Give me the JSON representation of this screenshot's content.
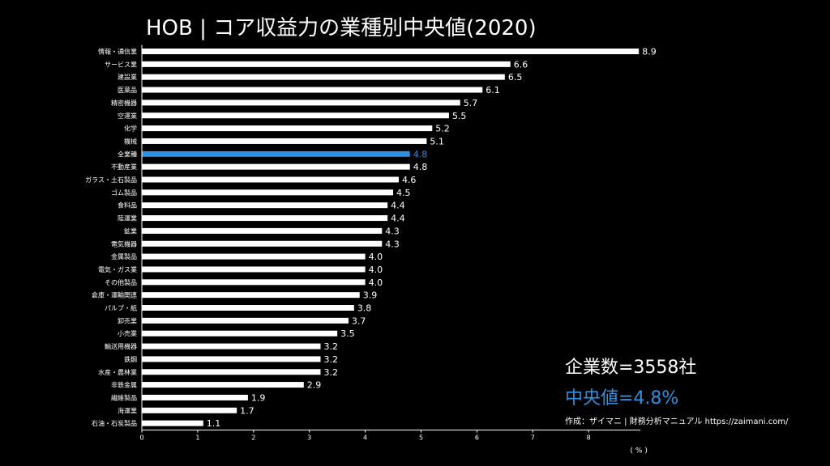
{
  "chart_data": {
    "type": "bar",
    "orientation": "horizontal",
    "title": "HOB | コア収益力の業種別中央値(2020)",
    "xlabel": "( % )",
    "xlim": [
      0,
      9
    ],
    "xticks": [
      0,
      1,
      2,
      3,
      4,
      5,
      6,
      7,
      8
    ],
    "highlight_category": "全業種",
    "categories": [
      "情報・通信業",
      "サービス業",
      "建設業",
      "医薬品",
      "精密機器",
      "空運業",
      "化学",
      "機械",
      "全業種",
      "不動産業",
      "ガラス・土石製品",
      "ゴム製品",
      "食料品",
      "陸運業",
      "鉱業",
      "電気機器",
      "金属製品",
      "電気・ガス業",
      "その他製品",
      "倉庫・運輸関連",
      "パルプ・紙",
      "卸売業",
      "小売業",
      "輸送用機器",
      "鉄鋼",
      "水産・農林業",
      "非鉄金属",
      "繊維製品",
      "海運業",
      "石油・石炭製品"
    ],
    "values": [
      8.9,
      6.6,
      6.5,
      6.1,
      5.7,
      5.5,
      5.2,
      5.1,
      4.8,
      4.8,
      4.6,
      4.5,
      4.4,
      4.4,
      4.3,
      4.3,
      4.0,
      4.0,
      4.0,
      3.9,
      3.8,
      3.7,
      3.5,
      3.2,
      3.2,
      3.2,
      2.9,
      1.9,
      1.7,
      1.1
    ],
    "value_labels": [
      "8.9",
      "6.6",
      "6.5",
      "6.1",
      "5.7",
      "5.5",
      "5.2",
      "5.1",
      "4.8",
      "4.8",
      "4.6",
      "4.5",
      "4.4",
      "4.4",
      "4.3",
      "4.3",
      "4.0",
      "4.0",
      "4.0",
      "3.9",
      "3.8",
      "3.7",
      "3.5",
      "3.2",
      "3.2",
      "3.2",
      "2.9",
      "1.9",
      "1.7",
      "1.1"
    ]
  },
  "info": {
    "company_count": "企業数=3558社",
    "median": "中央値=4.8%",
    "credit": "作成：ザイマニ | 財務分析マニュアル  https://zaimani.com/"
  },
  "colors": {
    "background": "#000000",
    "bar": "#ffffff",
    "highlight": "#2f8fe0"
  }
}
